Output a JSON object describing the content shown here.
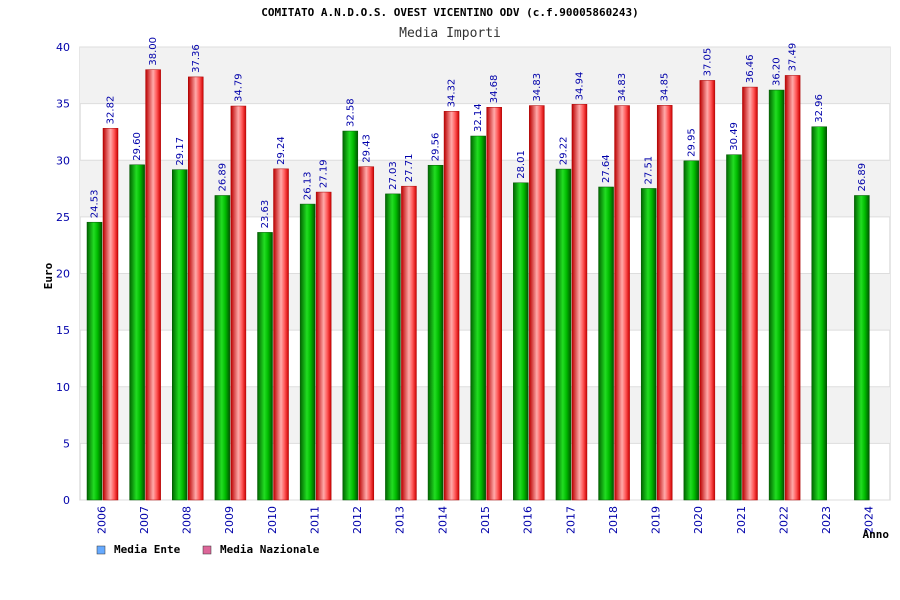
{
  "chart_data": {
    "type": "bar",
    "title": "COMITATO A.N.D.O.S. OVEST VICENTINO ODV (c.f.90005860243)",
    "subtitle": "Media Importi",
    "ylabel": "Euro",
    "xlabel": "Anno",
    "ylim": [
      0,
      40
    ],
    "yticks": [
      0,
      5,
      10,
      15,
      20,
      25,
      30,
      35,
      40
    ],
    "grid": true,
    "legend_position": "bottom-left",
    "categories": [
      "2006",
      "2007",
      "2008",
      "2009",
      "2010",
      "2011",
      "2012",
      "2013",
      "2014",
      "2015",
      "2016",
      "2017",
      "2018",
      "2019",
      "2020",
      "2021",
      "2022",
      "2023",
      "2024"
    ],
    "series": [
      {
        "name": "Media Ente",
        "color": "#00aa00",
        "legend_swatch": "#66aaff",
        "values": [
          24.53,
          29.6,
          29.17,
          26.89,
          23.63,
          26.13,
          32.58,
          27.03,
          29.56,
          32.14,
          28.01,
          29.22,
          27.64,
          27.51,
          29.95,
          30.49,
          36.2,
          32.96,
          26.89
        ],
        "labels": [
          "24.53",
          "29.60",
          "29.17",
          "26.89",
          "23.63",
          "26.13",
          "32.58",
          "27.03",
          "29.56",
          "32.14",
          "28.01",
          "29.22",
          "27.64",
          "27.51",
          "29.95",
          "30.49",
          "36.20",
          "32.96",
          "26.89"
        ]
      },
      {
        "name": "Media Nazionale",
        "color": "#ee1111",
        "legend_swatch": "#dd6699",
        "values": [
          32.82,
          38.0,
          37.36,
          34.79,
          29.24,
          27.19,
          29.43,
          27.71,
          34.32,
          34.68,
          34.83,
          34.94,
          34.83,
          34.85,
          37.05,
          36.46,
          37.49,
          null,
          null
        ],
        "labels": [
          "32.82",
          "38.00",
          "37.36",
          "34.79",
          "29.24",
          "27.19",
          "29.43",
          "27.71",
          "34.32",
          "34.68",
          "34.83",
          "34.94",
          "34.83",
          "34.85",
          "37.05",
          "36.46",
          "37.49",
          null,
          null
        ]
      }
    ]
  }
}
